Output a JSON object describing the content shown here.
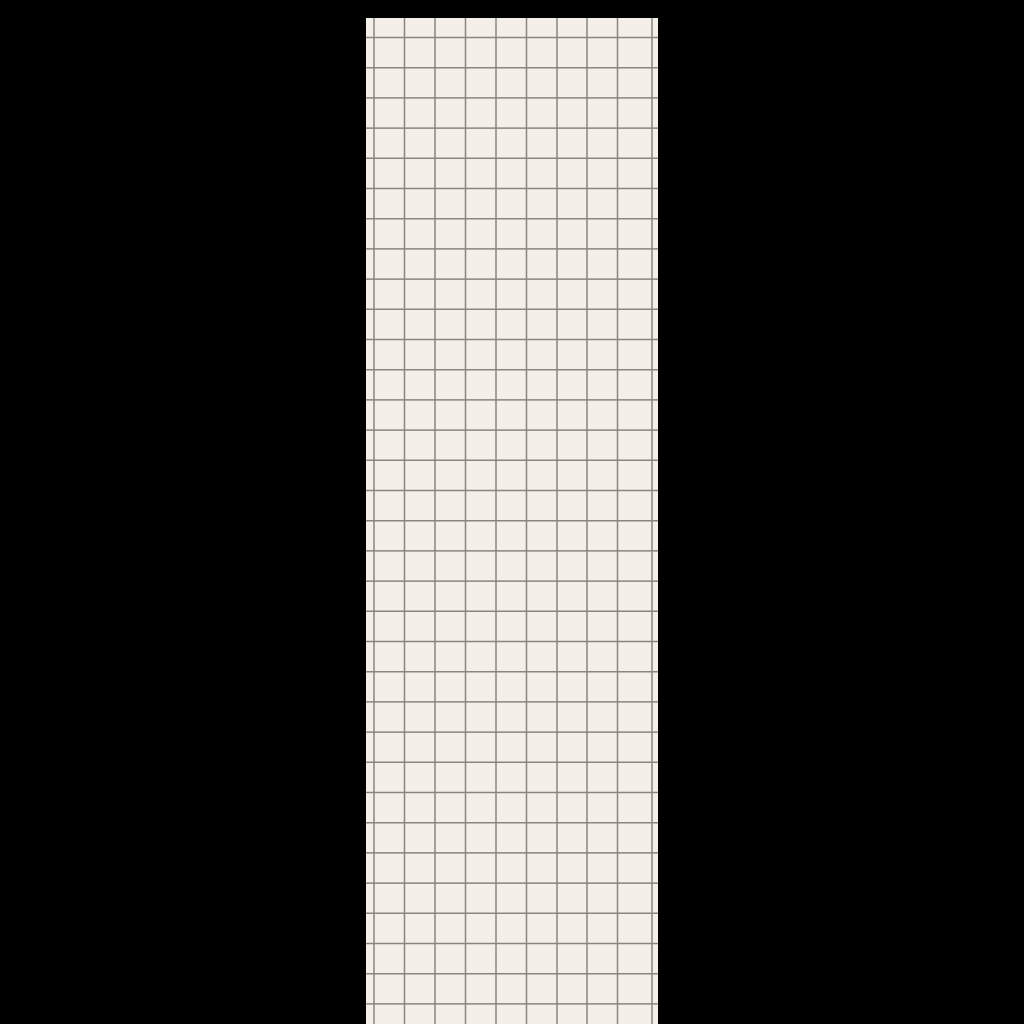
{
  "colors": {
    "background": "#000000",
    "paper": "#f4efe8",
    "grid_line": "#8a8580"
  }
}
